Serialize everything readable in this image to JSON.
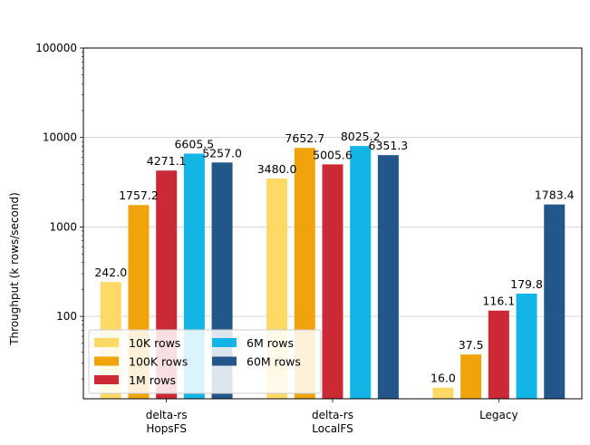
{
  "chart_data": {
    "type": "bar",
    "categories": [
      {
        "lines": [
          "delta-rs",
          "HopsFS"
        ]
      },
      {
        "lines": [
          "delta-rs",
          "LocalFS"
        ]
      },
      {
        "lines": [
          "Legacy"
        ]
      }
    ],
    "series": [
      {
        "name": "10K rows",
        "color": "#FFD966",
        "values": [
          242.0,
          3480.0,
          16.0
        ]
      },
      {
        "name": "100K rows",
        "color": "#F0A30A",
        "values": [
          1757.2,
          7652.7,
          37.5
        ]
      },
      {
        "name": "1M rows",
        "color": "#CC2936",
        "values": [
          4271.1,
          5005.6,
          116.1
        ]
      },
      {
        "name": "6M rows",
        "color": "#12B5E5",
        "values": [
          6605.5,
          8025.2,
          179.8
        ]
      },
      {
        "name": "60M rows",
        "color": "#235789",
        "values": [
          5257.0,
          6351.3,
          1783.4
        ]
      }
    ],
    "value_labels": [
      [
        "242.0",
        "3480.0",
        "16.0"
      ],
      [
        "1757.2",
        "7652.7",
        "37.5"
      ],
      [
        "4271.1",
        "5005.6",
        "116.1"
      ],
      [
        "6605.5",
        "8025.2",
        "179.8"
      ],
      [
        "5257.0",
        "6351.3",
        "1783.4"
      ]
    ],
    "ylabel": "Throughput (k rows/second)",
    "yscale": "log",
    "ylim": [
      12,
      100000
    ],
    "yticks": [
      {
        "value": 100,
        "label": "100"
      },
      {
        "value": 1000,
        "label": "1000"
      },
      {
        "value": 10000,
        "label": "10000"
      },
      {
        "value": 100000,
        "label": "100000"
      }
    ],
    "grid": "y",
    "legend": {
      "placement": "lower-left",
      "columns": 2
    }
  }
}
